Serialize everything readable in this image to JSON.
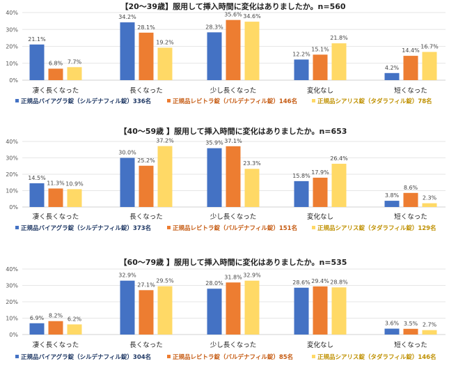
{
  "colors": {
    "series1": "#4472C4",
    "series2": "#ED7D31",
    "series3": "#FFD966",
    "legend1_text": "#1F3864",
    "legend2_text": "#C55A11",
    "legend3_text": "#BF9000"
  },
  "chart_data": [
    {
      "type": "bar",
      "title": "【20～39歳】服用して挿入時間に変化はありましたか。n=560",
      "categories": [
        "凄く長くなった",
        "長くなった",
        "少し長くなった",
        "変化なし",
        "短くなった"
      ],
      "ylim": [
        0,
        40
      ],
      "yticks": [
        "0%",
        "10%",
        "20%",
        "30%",
        "40%"
      ],
      "grid": true,
      "legend_position": "bottom",
      "series": [
        {
          "name": "正規品バイアグラ錠（シルデナフィル錠）336名",
          "values": [
            21.1,
            34.2,
            28.3,
            12.2,
            4.2
          ],
          "labels": [
            "21.1%",
            "34.2%",
            "28.3%",
            "12.2%",
            "4.2%"
          ]
        },
        {
          "name": "正規品レビトラ錠（バルデナフィル錠）146名",
          "values": [
            6.8,
            28.1,
            35.6,
            15.1,
            14.4
          ],
          "labels": [
            "6.8%",
            "28.1%",
            "35.6%",
            "15.1%",
            "14.4%"
          ]
        },
        {
          "name": "正規品シアリス錠（タダラフィル錠）78名",
          "values": [
            7.7,
            19.2,
            34.6,
            21.8,
            16.7
          ],
          "labels": [
            "7.7%",
            "19.2%",
            "34.6%",
            "21.8%",
            "16.7%"
          ]
        }
      ]
    },
    {
      "type": "bar",
      "title": "【40～59歳 】服用して挿入時間に変化はありましたか。n=653",
      "categories": [
        "凄く長くなった",
        "長くなった",
        "少し長くなった",
        "変化なし",
        "短くなった"
      ],
      "ylim": [
        0,
        40
      ],
      "yticks": [
        "0%",
        "10%",
        "20%",
        "30%",
        "40%"
      ],
      "grid": true,
      "legend_position": "bottom",
      "series": [
        {
          "name": "正規品バイアグラ錠（シルデナフィル錠）373名",
          "values": [
            14.5,
            30.0,
            35.9,
            15.8,
            3.8
          ],
          "labels": [
            "14.5%",
            "30.0%",
            "35.9%",
            "15.8%",
            "3.8%"
          ]
        },
        {
          "name": "正規品レビトラ錠（バルデナフィル錠）151名",
          "values": [
            11.3,
            25.2,
            37.1,
            17.9,
            8.6
          ],
          "labels": [
            "11.3%",
            "25.2%",
            "37.1%",
            "17.9%",
            "8.6%"
          ]
        },
        {
          "name": "正規品シアリス錠（タダラフィル錠）129名",
          "values": [
            10.9,
            37.2,
            23.3,
            26.4,
            2.3
          ],
          "labels": [
            "10.9%",
            "37.2%",
            "23.3%",
            "26.4%",
            "2.3%"
          ]
        }
      ]
    },
    {
      "type": "bar",
      "title": "【60～79歳 】服用して挿入時間に変化はありましたか。n=535",
      "categories": [
        "凄く長くなった",
        "長くなった",
        "少し長くなった",
        "変化なし",
        "短くなった"
      ],
      "ylim": [
        0,
        40
      ],
      "yticks": [
        "0%",
        "10%",
        "20%",
        "30%",
        "40%"
      ],
      "grid": true,
      "legend_position": "bottom",
      "series": [
        {
          "name": "正規品バイアグラ錠（シルデナフィル錠）304名",
          "values": [
            6.9,
            32.9,
            28.0,
            28.6,
            3.6
          ],
          "labels": [
            "6.9%",
            "32.9%",
            "28.0%",
            "28.6%",
            "3.6%"
          ]
        },
        {
          "name": "正規品レビトラ錠（バルデナフィル錠）85名",
          "values": [
            8.2,
            27.1,
            31.8,
            29.4,
            3.5
          ],
          "labels": [
            "8.2%",
            "27.1%",
            "31.8%",
            "29.4%",
            "3.5%"
          ]
        },
        {
          "name": "正規品シアリス錠（タダラフィル錠）146名",
          "values": [
            6.2,
            29.5,
            32.9,
            28.8,
            2.7
          ],
          "labels": [
            "6.2%",
            "29.5%",
            "32.9%",
            "28.8%",
            "2.7%"
          ]
        }
      ]
    }
  ]
}
